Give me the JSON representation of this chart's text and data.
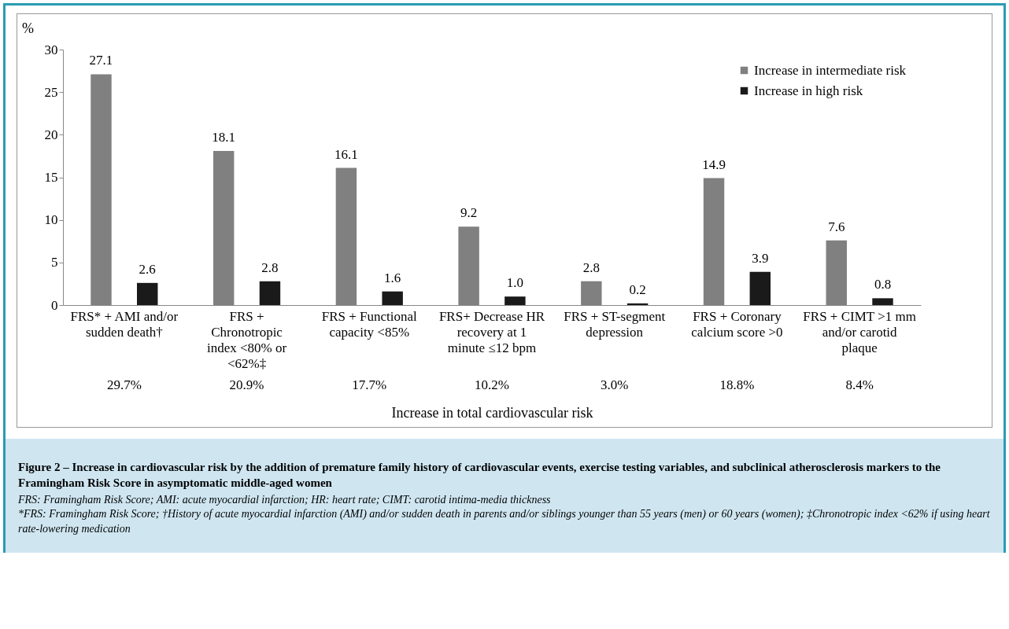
{
  "chart_data": {
    "type": "bar",
    "title": "Figure 2 – Increase in cardiovascular risk by the addition of premature family history of cardiovascular events, exercise testing variables, and subclinical atherosclerosis markers to the Framingham Risk Score in asymptomatic middle-aged women",
    "categories": [
      "FRS* + AMI and/or sudden death†",
      "FRS + Chronotropic index <80% or <62%‡",
      "FRS + Functional capacity <85%",
      "FRS+ Decrease HR recovery at 1 minute ≤12 bpm",
      "FRS + ST-segment depression",
      "FRS + Coronary calcium score >0",
      "FRS + CIMT >1 mm and/or carotid plaque"
    ],
    "series": [
      {
        "name": "Increase in intermediate risk",
        "color": "#808080",
        "values": [
          27.1,
          18.1,
          16.1,
          9.2,
          2.8,
          14.9,
          7.6
        ],
        "value_labels": [
          "27.1",
          "18.1",
          "16.1",
          "9.2",
          "2.8",
          "14.9",
          "7.6"
        ]
      },
      {
        "name": "Increase in high risk",
        "color": "#1a1a1a",
        "values": [
          2.6,
          2.8,
          1.6,
          1.0,
          0.2,
          3.9,
          0.8
        ],
        "value_labels": [
          "2.6",
          "2.8",
          "1.6",
          "1.0",
          "0.2",
          "3.9",
          "0.8"
        ]
      }
    ],
    "xlabel": "Increase in total cardiovascular risk",
    "ylabel": "%",
    "ylim": [
      0,
      30
    ],
    "yticks": [
      0,
      5,
      10,
      15,
      20,
      25,
      30
    ],
    "grid": false,
    "legend": "top right",
    "annotations": [
      "29.7%",
      "20.9%",
      "17.7%",
      "10.2%",
      "3.0%",
      "18.8%",
      "8.4%",
      "FRS: Framingham Risk Score; AMI: acute myocardial infarction; HR: heart rate; CIMT: carotid intima-media thickness",
      "*FRS: Framingham Risk Score; †History of acute myocardial infarction (AMI) and/or sudden death in parents and/or siblings younger than 55 years (men) or 60 years (women); ‡Chronotropic index <62% if using heart rate-lowering medication"
    ]
  }
}
